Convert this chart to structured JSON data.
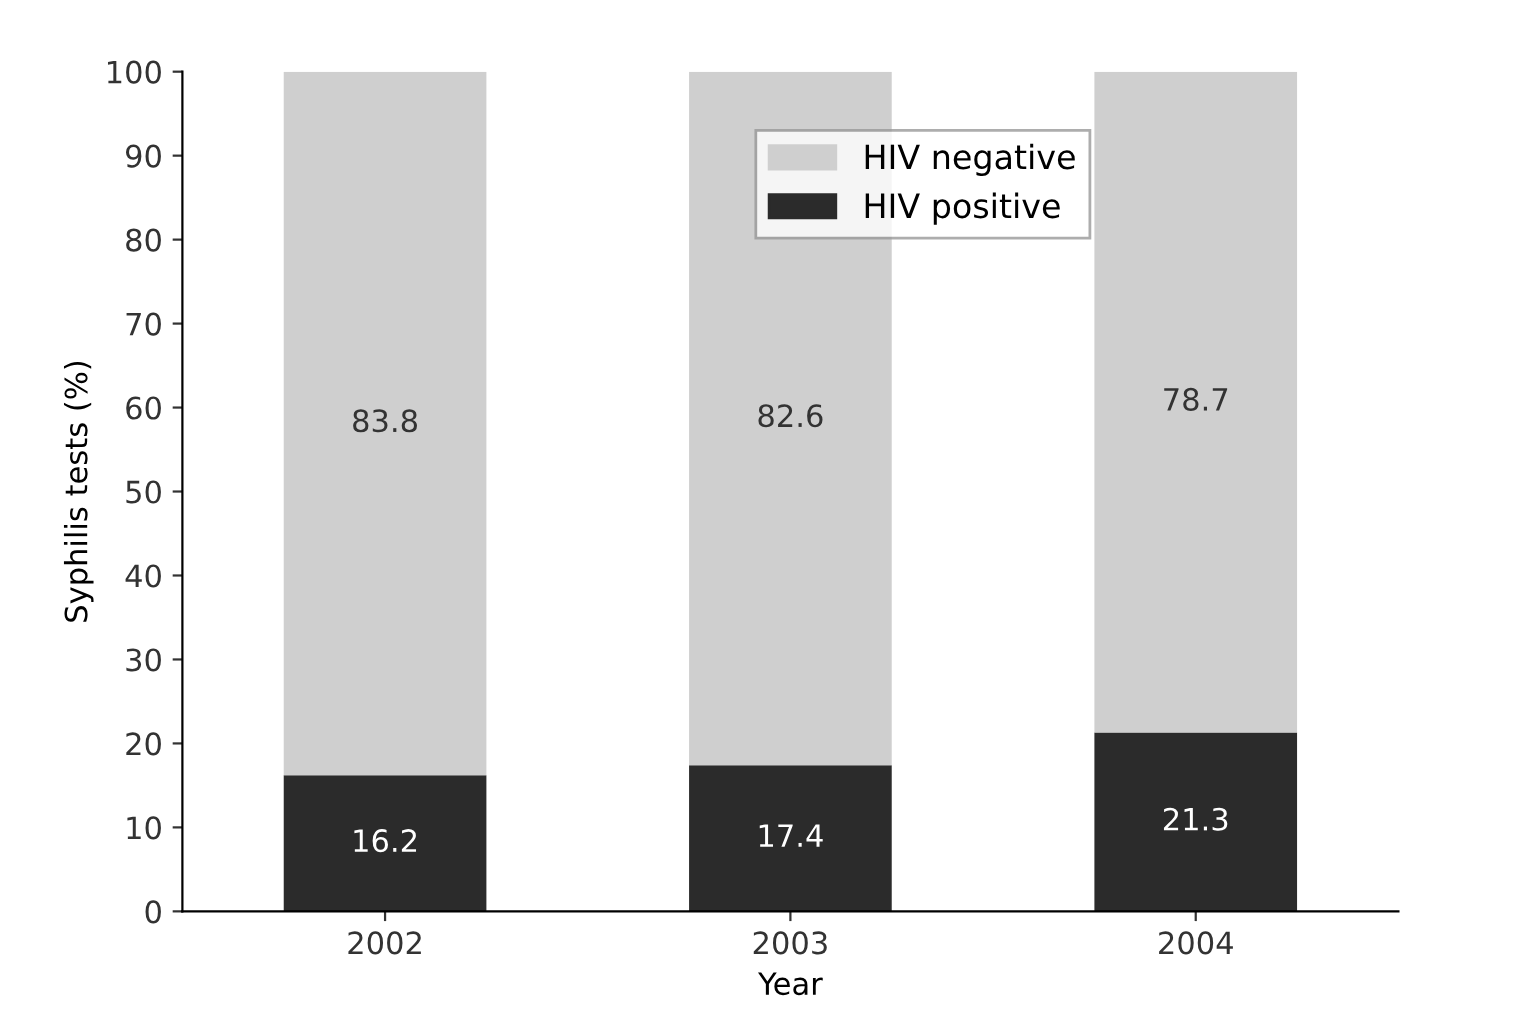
{
  "chart_data": {
    "type": "bar",
    "stacked": true,
    "xlabel": "Year",
    "ylabel": "Syphilis tests (%)",
    "categories": [
      "2002",
      "2003",
      "2004"
    ],
    "series": [
      {
        "name": "HIV positive",
        "color": "#2b2b2b",
        "values": [
          16.2,
          17.4,
          21.3
        ]
      },
      {
        "name": "HIV negative",
        "color": "#cfcfcf",
        "values": [
          83.8,
          82.6,
          78.7
        ]
      }
    ],
    "ylim": [
      0,
      100
    ],
    "yticks": [
      0,
      10,
      20,
      30,
      40,
      50,
      60,
      70,
      80,
      90,
      100
    ],
    "grid": false,
    "legend": "top right",
    "data_labels": true
  }
}
